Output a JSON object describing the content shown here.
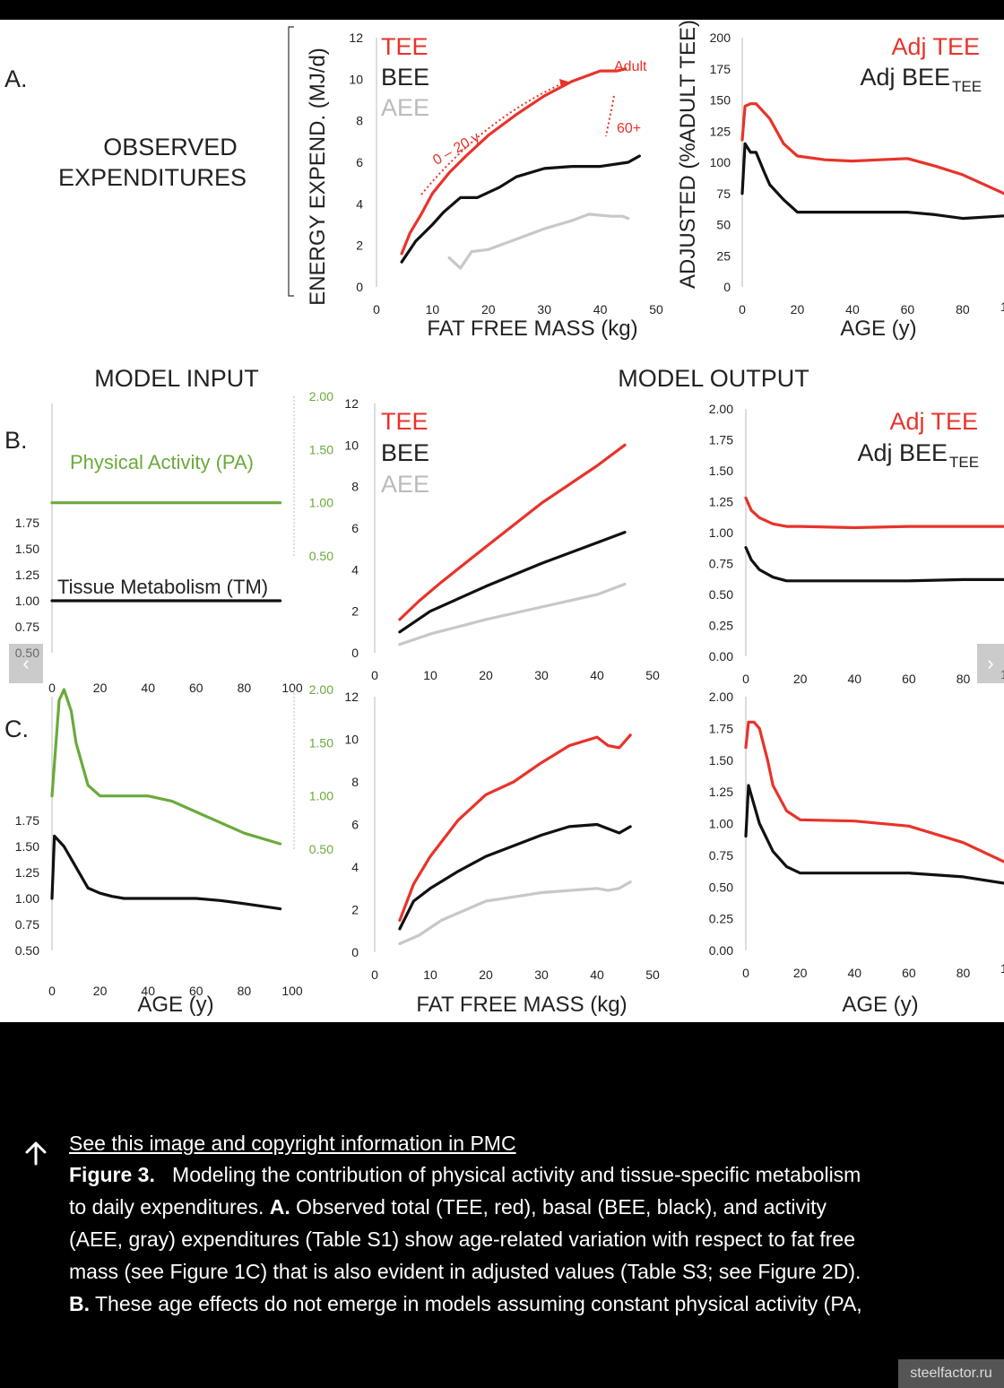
{
  "figure": {
    "row_labels": {
      "a": "A.",
      "b": "B.",
      "c": "C."
    },
    "observed_label": [
      "OBSERVED",
      "EXPENDITURES"
    ],
    "model_input_title": "MODEL INPUT",
    "model_output_title": "MODEL OUTPUT",
    "legend": {
      "tee": "TEE",
      "bee": "BEE",
      "aee": "AEE",
      "adj_tee": "Adj TEE",
      "adj_bee": "Adj BEE",
      "adj_bee_sub": "TEE"
    },
    "annotations": {
      "age_range": "0 – 20 y",
      "adult": "Adult",
      "older": "60+"
    },
    "pa_label": "Physical Activity (PA)",
    "tm_label": "Tissue Metabolism (TM)",
    "axis_labels": {
      "energy": "ENERGY EXPEND. (MJ/d)",
      "adjusted": "ADJUSTED (%ADULT TEE)",
      "ffm": "FAT FREE MASS (kg)",
      "age": "AGE (y)"
    },
    "ticks": {
      "energy_y": [
        "0",
        "2",
        "4",
        "6",
        "8",
        "10",
        "12"
      ],
      "ffm_x": [
        "0",
        "10",
        "20",
        "30",
        "40",
        "50"
      ],
      "adj_pct_y": [
        "0",
        "25",
        "50",
        "75",
        "100",
        "125",
        "150",
        "175",
        "200"
      ],
      "age_x_out": [
        "0",
        "20",
        "40",
        "60",
        "80"
      ],
      "age_x_out_cut": "1",
      "age_x_in": [
        "0",
        "20",
        "40",
        "60",
        "80",
        "100"
      ],
      "tm_y": [
        "0.50",
        "0.75",
        "1.00",
        "1.25",
        "1.50",
        "1.75"
      ],
      "pa_y": [
        "0.50",
        "1.00",
        "1.50",
        "2.00"
      ],
      "adj_ratio_y": [
        "0.00",
        "0.25",
        "0.50",
        "0.75",
        "1.00",
        "1.25",
        "1.50",
        "1.75",
        "2.00"
      ]
    },
    "colors": {
      "tee": "#e8332a",
      "bee": "#111111",
      "aee": "#c8c8c8",
      "pa": "#6aaa3a"
    }
  },
  "chart_data": [
    {
      "panel": "A-left",
      "type": "line",
      "xlabel": "FAT FREE MASS (kg)",
      "ylabel": "ENERGY EXPEND. (MJ/d)",
      "xlim": [
        0,
        50
      ],
      "ylim": [
        0,
        12
      ],
      "series": [
        {
          "name": "TEE",
          "x": [
            4.5,
            6,
            8,
            10,
            13,
            16,
            20,
            25,
            30,
            35,
            40,
            43,
            44.5
          ],
          "y": [
            1.6,
            2.6,
            3.5,
            4.5,
            5.5,
            6.3,
            7.3,
            8.3,
            9.2,
            9.9,
            10.4,
            10.4,
            10.5
          ]
        },
        {
          "name": "BEE",
          "x": [
            4.5,
            7,
            10,
            12,
            15,
            18,
            22,
            25,
            30,
            35,
            40,
            45,
            47
          ],
          "y": [
            1.2,
            2.2,
            3.0,
            3.6,
            4.3,
            4.3,
            4.8,
            5.3,
            5.7,
            5.8,
            5.8,
            6.0,
            6.3
          ]
        },
        {
          "name": "AEE",
          "x": [
            13,
            15,
            17,
            20,
            25,
            30,
            35,
            38,
            42,
            44,
            45
          ],
          "y": [
            1.4,
            0.9,
            1.7,
            1.8,
            2.3,
            2.8,
            3.2,
            3.5,
            3.4,
            3.4,
            3.3
          ]
        }
      ]
    },
    {
      "panel": "A-right",
      "type": "line",
      "xlabel": "AGE (y)",
      "ylabel": "ADJUSTED (%ADULT TEE)",
      "xlim": [
        0,
        95
      ],
      "ylim": [
        0,
        200
      ],
      "series": [
        {
          "name": "Adj TEE",
          "x": [
            0,
            1,
            3,
            5,
            10,
            15,
            20,
            30,
            40,
            50,
            60,
            70,
            80,
            95
          ],
          "y": [
            118,
            145,
            147,
            147,
            135,
            115,
            105,
            102,
            101,
            102,
            103,
            97,
            90,
            75
          ]
        },
        {
          "name": "Adj BEE TEE",
          "x": [
            0,
            1,
            3,
            5,
            8,
            10,
            15,
            20,
            30,
            40,
            50,
            60,
            70,
            80,
            95
          ],
          "y": [
            75,
            115,
            108,
            108,
            92,
            82,
            70,
            60,
            60,
            60,
            60,
            60,
            58,
            55,
            57
          ]
        }
      ]
    },
    {
      "panel": "B-left",
      "type": "line",
      "xlabel": "AGE (y)",
      "xlim": [
        0,
        100
      ],
      "series": [
        {
          "name": "Physical Activity (PA)",
          "x": [
            0,
            95
          ],
          "y": [
            1.0,
            1.0
          ]
        },
        {
          "name": "Tissue Metabolism (TM)",
          "x": [
            0,
            95
          ],
          "y": [
            1.0,
            1.0
          ]
        }
      ]
    },
    {
      "panel": "B-middle",
      "type": "line",
      "xlabel": "FAT FREE MASS (kg)",
      "xlim": [
        0,
        50
      ],
      "ylim": [
        0,
        12
      ],
      "series": [
        {
          "name": "TEE",
          "x": [
            4.5,
            8,
            12,
            20,
            30,
            40,
            45
          ],
          "y": [
            1.6,
            2.5,
            3.4,
            5.1,
            7.2,
            9.0,
            10.0
          ]
        },
        {
          "name": "BEE",
          "x": [
            4.5,
            10,
            20,
            30,
            40,
            45
          ],
          "y": [
            1.0,
            2.0,
            3.2,
            4.3,
            5.3,
            5.8
          ]
        },
        {
          "name": "AEE",
          "x": [
            4.5,
            10,
            20,
            30,
            40,
            45
          ],
          "y": [
            0.4,
            0.9,
            1.6,
            2.2,
            2.8,
            3.3
          ]
        }
      ]
    },
    {
      "panel": "B-right",
      "type": "line",
      "xlabel": "AGE (y)",
      "xlim": [
        0,
        95
      ],
      "ylim": [
        0,
        2
      ],
      "series": [
        {
          "name": "Adj TEE",
          "x": [
            0,
            2,
            5,
            10,
            15,
            20,
            40,
            60,
            80,
            95
          ],
          "y": [
            1.28,
            1.18,
            1.12,
            1.07,
            1.05,
            1.05,
            1.04,
            1.05,
            1.05,
            1.05
          ]
        },
        {
          "name": "Adj BEE TEE",
          "x": [
            0,
            2,
            5,
            10,
            15,
            20,
            40,
            60,
            80,
            95
          ],
          "y": [
            0.88,
            0.78,
            0.7,
            0.64,
            0.61,
            0.61,
            0.61,
            0.61,
            0.62,
            0.62
          ]
        }
      ]
    },
    {
      "panel": "C-left",
      "type": "line",
      "xlabel": "AGE (y)",
      "xlim": [
        0,
        100
      ],
      "series": [
        {
          "name": "Physical Activity (PA)",
          "x": [
            0,
            3,
            5,
            8,
            10,
            15,
            20,
            30,
            40,
            50,
            60,
            70,
            80,
            95
          ],
          "y": [
            1.0,
            1.9,
            2.0,
            1.8,
            1.5,
            1.1,
            1.0,
            1.0,
            1.0,
            0.95,
            0.85,
            0.75,
            0.65,
            0.55
          ]
        },
        {
          "name": "Tissue Metabolism (TM)",
          "x": [
            0,
            1,
            5,
            10,
            15,
            20,
            25,
            30,
            40,
            60,
            70,
            80,
            95
          ],
          "y": [
            1.0,
            1.6,
            1.5,
            1.3,
            1.1,
            1.05,
            1.02,
            1.0,
            1.0,
            1.0,
            0.98,
            0.95,
            0.9
          ]
        }
      ]
    },
    {
      "panel": "C-middle",
      "type": "line",
      "xlabel": "FAT FREE MASS (kg)",
      "xlim": [
        0,
        50
      ],
      "ylim": [
        0,
        12
      ],
      "series": [
        {
          "name": "TEE",
          "x": [
            4.5,
            7,
            10,
            15,
            20,
            25,
            30,
            35,
            40,
            42,
            44,
            46
          ],
          "y": [
            1.5,
            3.2,
            4.5,
            6.2,
            7.4,
            8.0,
            8.9,
            9.7,
            10.1,
            9.7,
            9.6,
            10.2
          ]
        },
        {
          "name": "BEE",
          "x": [
            4.5,
            7,
            10,
            15,
            20,
            25,
            30,
            35,
            40,
            42,
            44,
            46
          ],
          "y": [
            1.1,
            2.4,
            3.0,
            3.8,
            4.5,
            5.0,
            5.5,
            5.9,
            6.0,
            5.8,
            5.6,
            5.9
          ]
        },
        {
          "name": "AEE",
          "x": [
            4.5,
            8,
            12,
            20,
            25,
            30,
            35,
            40,
            42,
            44,
            46
          ],
          "y": [
            0.4,
            0.8,
            1.5,
            2.4,
            2.6,
            2.8,
            2.9,
            3.0,
            2.9,
            3.0,
            3.3
          ]
        }
      ]
    },
    {
      "panel": "C-right",
      "type": "line",
      "xlabel": "AGE (y)",
      "xlim": [
        0,
        95
      ],
      "ylim": [
        0,
        2
      ],
      "series": [
        {
          "name": "Adj TEE",
          "x": [
            0,
            1,
            3,
            5,
            8,
            10,
            15,
            20,
            40,
            60,
            80,
            95
          ],
          "y": [
            1.6,
            1.8,
            1.8,
            1.75,
            1.5,
            1.3,
            1.1,
            1.03,
            1.02,
            0.98,
            0.85,
            0.7
          ]
        },
        {
          "name": "Adj BEE TEE",
          "x": [
            0,
            1,
            3,
            5,
            10,
            15,
            20,
            30,
            40,
            60,
            80,
            95
          ],
          "y": [
            0.9,
            1.3,
            1.15,
            1.0,
            0.78,
            0.66,
            0.61,
            0.61,
            0.61,
            0.61,
            0.58,
            0.53
          ]
        }
      ]
    }
  ],
  "caption": {
    "link_text": "See this image and copyright information in PMC",
    "fig_label": "Figure 3.",
    "line1": "Modeling the contribution of physical activity and tissue-specific metabolism",
    "line2_pre": "to daily expenditures.",
    "a_label": "A.",
    "line2_post": "Observed total (TEE, red), basal (BEE, black), and activity",
    "line3": "(AEE, gray) expenditures (Table S1) show age-related variation with respect to fat free",
    "line4": "mass (see Figure 1C) that is also evident in adjusted values (Table S3; see Figure 2D).",
    "b_label": "B.",
    "line5": "These age effects do not emerge in models assuming constant physical activity (PA,"
  },
  "nav": {
    "prev": "‹",
    "next": "›"
  },
  "watermark": "steelfactor.ru"
}
